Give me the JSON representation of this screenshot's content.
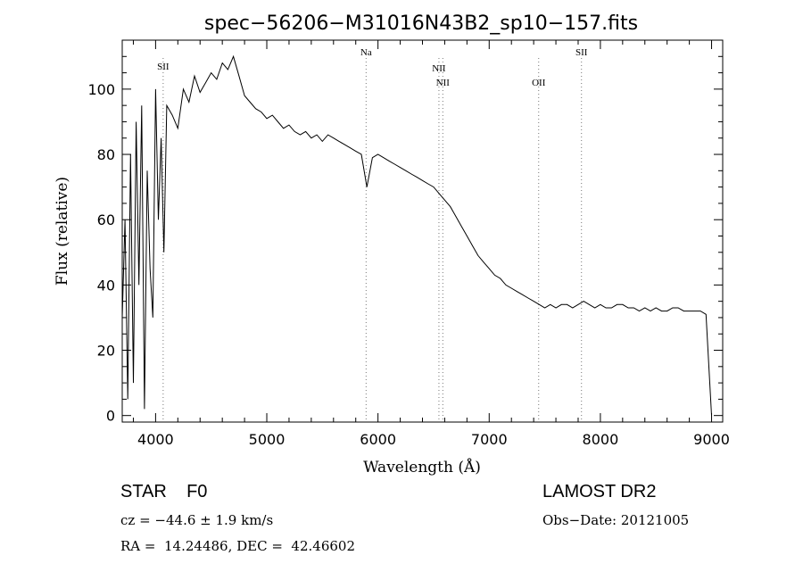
{
  "chart_data": {
    "type": "line",
    "title": "spec−56206−M31016N43B2_sp10−157.fits",
    "xlabel": "Wavelength (Å)",
    "ylabel": "Flux (relative)",
    "xlim": [
      3700,
      9100
    ],
    "ylim": [
      -2,
      115
    ],
    "x_ticks": [
      4000,
      5000,
      6000,
      7000,
      8000,
      9000
    ],
    "y_ticks": [
      0,
      20,
      40,
      60,
      80,
      100
    ],
    "grid": false,
    "series": [
      {
        "x": [
          3700,
          3725,
          3750,
          3775,
          3800,
          3825,
          3850,
          3875,
          3900,
          3925,
          3950,
          3975,
          4000,
          4025,
          4050,
          4075,
          4100,
          4150,
          4200,
          4250,
          4300,
          4350,
          4400,
          4450,
          4500,
          4550,
          4600,
          4650,
          4700,
          4750,
          4800,
          4850,
          4900,
          4950,
          5000,
          5050,
          5100,
          5150,
          5200,
          5250,
          5300,
          5350,
          5400,
          5450,
          5500,
          5550,
          5600,
          5650,
          5700,
          5750,
          5800,
          5850,
          5900,
          5950,
          6000,
          6050,
          6100,
          6150,
          6200,
          6250,
          6300,
          6350,
          6400,
          6450,
          6500,
          6550,
          6600,
          6650,
          6700,
          6750,
          6800,
          6850,
          6900,
          6950,
          7000,
          7050,
          7100,
          7150,
          7200,
          7250,
          7300,
          7350,
          7400,
          7450,
          7500,
          7550,
          7600,
          7650,
          7700,
          7750,
          7800,
          7850,
          7900,
          7950,
          8000,
          8050,
          8100,
          8150,
          8200,
          8250,
          8300,
          8350,
          8400,
          8450,
          8500,
          8550,
          8600,
          8650,
          8700,
          8750,
          8800,
          8850,
          8900,
          8950,
          9000
        ],
        "values": [
          30,
          60,
          5,
          80,
          10,
          90,
          40,
          95,
          2,
          75,
          45,
          30,
          100,
          60,
          85,
          50,
          95,
          92,
          88,
          100,
          96,
          104,
          99,
          102,
          105,
          103,
          108,
          106,
          110,
          104,
          98,
          96,
          94,
          93,
          91,
          92,
          90,
          88,
          89,
          87,
          86,
          87,
          85,
          86,
          84,
          86,
          85,
          84,
          83,
          82,
          81,
          80,
          70,
          79,
          80,
          79,
          78,
          77,
          76,
          75,
          74,
          73,
          72,
          71,
          70,
          68,
          66,
          64,
          61,
          58,
          55,
          52,
          49,
          47,
          45,
          43,
          42,
          40,
          39,
          38,
          37,
          36,
          35,
          34,
          33,
          34,
          33,
          34,
          34,
          33,
          34,
          35,
          34,
          33,
          34,
          33,
          33,
          34,
          34,
          33,
          33,
          32,
          33,
          32,
          33,
          32,
          32,
          33,
          33,
          32,
          32,
          32,
          32,
          31,
          0
        ]
      }
    ],
    "emission_lines": [
      {
        "label": "SII",
        "x": 4068
      },
      {
        "label": "Na",
        "x": 5893
      },
      {
        "label": "NII",
        "x": 6548
      },
      {
        "label": "NII",
        "x": 6583
      },
      {
        "label": "OII",
        "x": 7445
      },
      {
        "label": "SII",
        "x": 7830
      }
    ]
  },
  "footer": {
    "classification": "STAR    F0",
    "survey": "LAMOST DR2",
    "cz": "cz = −44.6 ± 1.9 km/s",
    "obs_date": "Obs−Date: 20121005",
    "coords": "RA =  14.24486, DEC =  42.46602"
  }
}
